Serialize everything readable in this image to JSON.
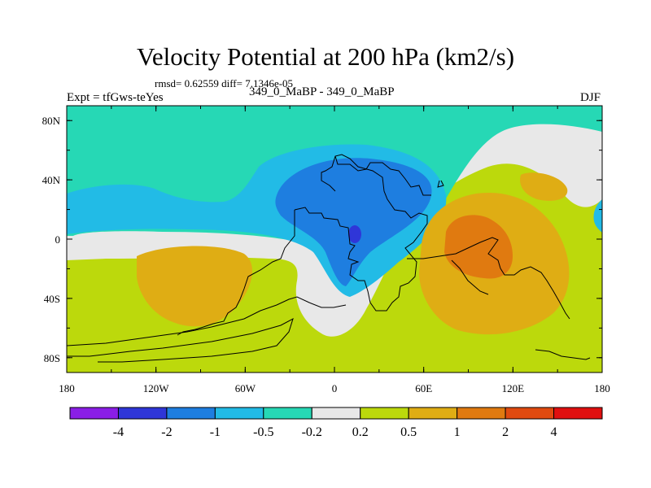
{
  "chart_data": {
    "type": "heatmap",
    "title": "Velocity Potential at 200 hPa (km2/s)",
    "subtitle": "rmsd= 0.62559 diff= 7.1346e-05",
    "left_string": "Expt = tfGws-teYes",
    "center_string": "349_0_MaBP - 349_0_MaBP",
    "right_string": "DJF",
    "x_range": [
      -180,
      180
    ],
    "y_range": [
      -90,
      90
    ],
    "x_ticks": [
      {
        "value": -180,
        "label": "180"
      },
      {
        "value": -120,
        "label": "120W"
      },
      {
        "value": -60,
        "label": "60W"
      },
      {
        "value": 0,
        "label": "0"
      },
      {
        "value": 60,
        "label": "60E"
      },
      {
        "value": 120,
        "label": "120E"
      },
      {
        "value": 180,
        "label": "180"
      }
    ],
    "y_ticks": [
      {
        "value": 80,
        "label": "80N"
      },
      {
        "value": 40,
        "label": "40N"
      },
      {
        "value": 0,
        "label": "0"
      },
      {
        "value": -40,
        "label": "40S"
      },
      {
        "value": -80,
        "label": "80S"
      }
    ],
    "colorbar": {
      "levels": [
        "-4",
        "-2",
        "-1",
        "-0.5",
        "-0.2",
        "0.2",
        "0.5",
        "1",
        "2",
        "4"
      ],
      "colors": [
        "#8a1ee6",
        "#2f36d8",
        "#1e7ee0",
        "#22bbe6",
        "#26d8b5",
        "#e8e8e8",
        "#bcd90c",
        "#dfad14",
        "#e07a10",
        "#e04a10",
        "#e01010"
      ]
    },
    "regions": [
      {
        "name": "north-polar-band",
        "level": "-0.5 to -0.2",
        "lon_range": [
          -180,
          180
        ],
        "lat_range": [
          40,
          90
        ]
      },
      {
        "name": "atlantic-africa-low",
        "level": "-1 to -0.5",
        "lon_range": [
          -60,
          70
        ],
        "lat_range": [
          -30,
          60
        ]
      },
      {
        "name": "africa-core-low",
        "level": "-2 to -1",
        "lon_range": [
          -35,
          55
        ],
        "lat_range": [
          -10,
          55
        ]
      },
      {
        "name": "africa-minimum",
        "level": "-4 to -2",
        "lon_range": [
          10,
          20
        ],
        "lat_range": [
          -2,
          8
        ]
      },
      {
        "name": "indian-ocean-high",
        "level": "1 to 2",
        "lon_range": [
          70,
          125
        ],
        "lat_range": [
          -25,
          20
        ]
      },
      {
        "name": "south-pacific-high",
        "level": "0.5 to 1",
        "lon_range": [
          -150,
          -50
        ],
        "lat_range": [
          -60,
          0
        ]
      },
      {
        "name": "east-asia-high",
        "level": "0.5 to 1",
        "lon_range": [
          130,
          160
        ],
        "lat_range": [
          25,
          40
        ]
      }
    ]
  }
}
